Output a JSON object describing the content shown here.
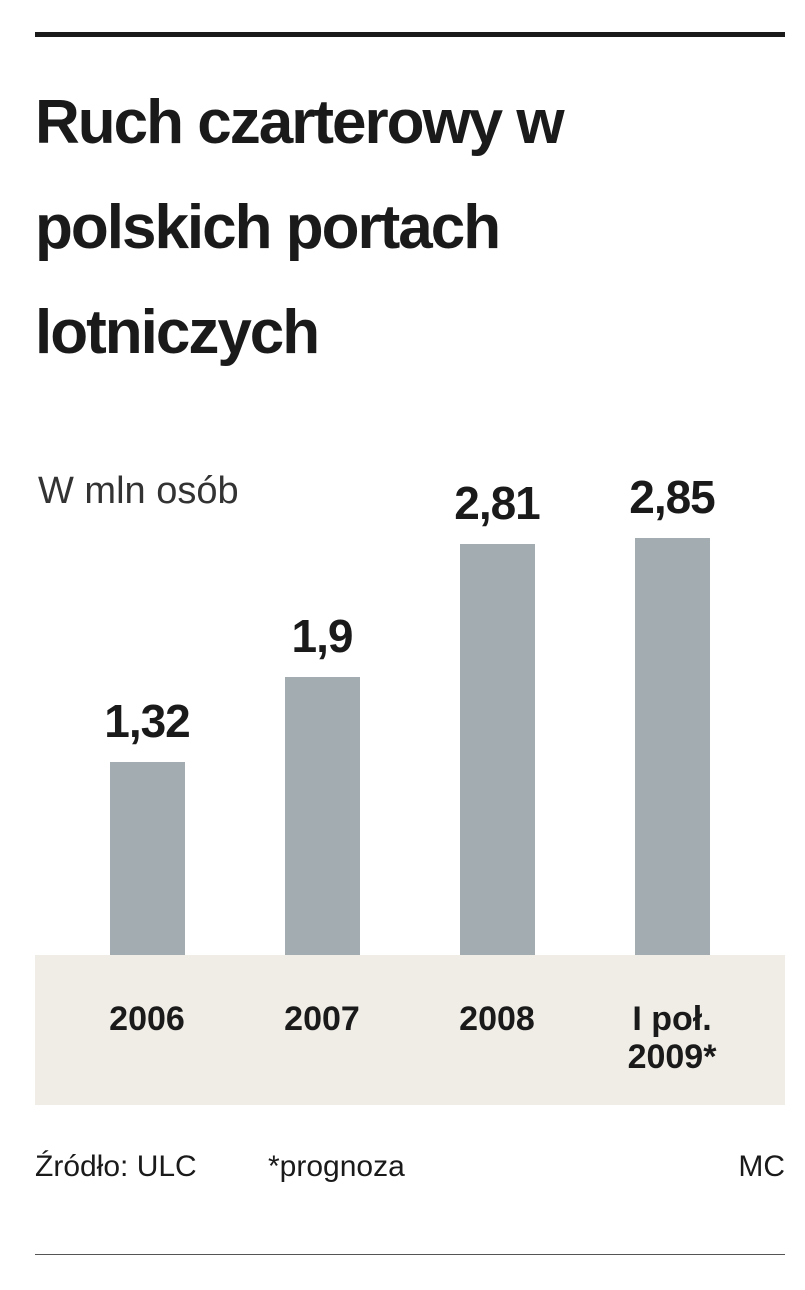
{
  "chart_data": {
    "type": "bar",
    "title": "Ruch czarterowy w polskich portach lotniczych",
    "subtitle": "W mln osób",
    "categories": [
      "2006",
      "2007",
      "2008",
      "I poł. 2009*"
    ],
    "values": [
      1.32,
      1.9,
      2.81,
      2.85
    ],
    "value_labels": [
      "1,32",
      "1,9",
      "2,81",
      "2,85"
    ],
    "color": "#a3acb1",
    "source": "Źródło: ULC",
    "note": "*prognoza",
    "credit": "MC"
  }
}
